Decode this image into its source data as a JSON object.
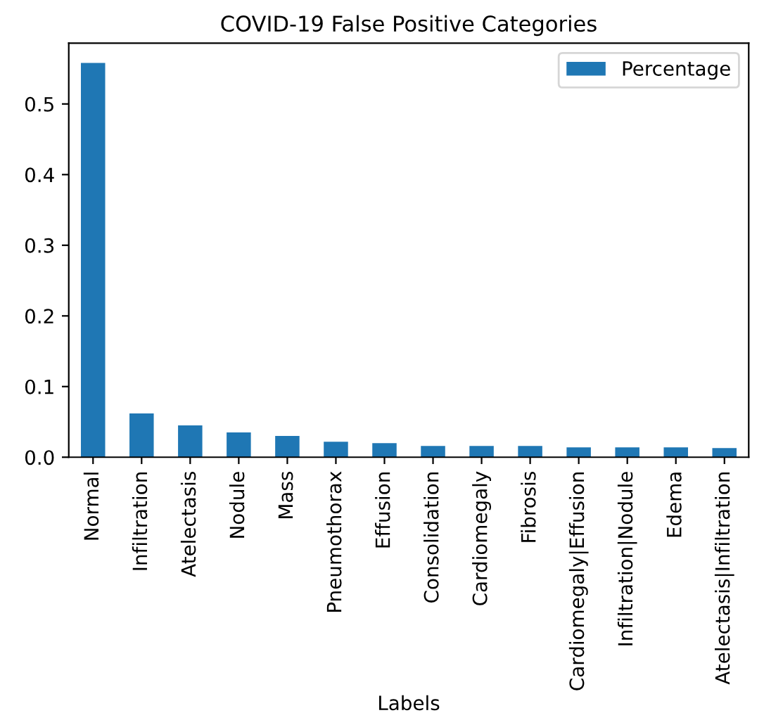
{
  "chart_data": {
    "type": "bar",
    "title": "COVID-19 False Positive Categories",
    "xlabel": "Labels",
    "categories": [
      "Normal",
      "Infiltration",
      "Atelectasis",
      "Nodule",
      "Mass",
      "Pneumothorax",
      "Effusion",
      "Consolidation",
      "Cardiomegaly",
      "Fibrosis",
      "Cardiomegaly|Effusion",
      "Infiltration|Nodule",
      "Edema",
      "Atelectasis|Infiltration"
    ],
    "series": [
      {
        "name": "Percentage",
        "color": "#1f77b4",
        "values": [
          0.558,
          0.062,
          0.045,
          0.035,
          0.03,
          0.022,
          0.02,
          0.016,
          0.016,
          0.016,
          0.014,
          0.014,
          0.014,
          0.013
        ]
      }
    ],
    "ylim": [
      0,
      0.586
    ],
    "yticks": [
      {
        "value": 0,
        "label": "0.0"
      },
      0.1,
      0.2,
      0.3,
      0.4,
      0.5
    ],
    "legend": "top right",
    "grid": false
  }
}
